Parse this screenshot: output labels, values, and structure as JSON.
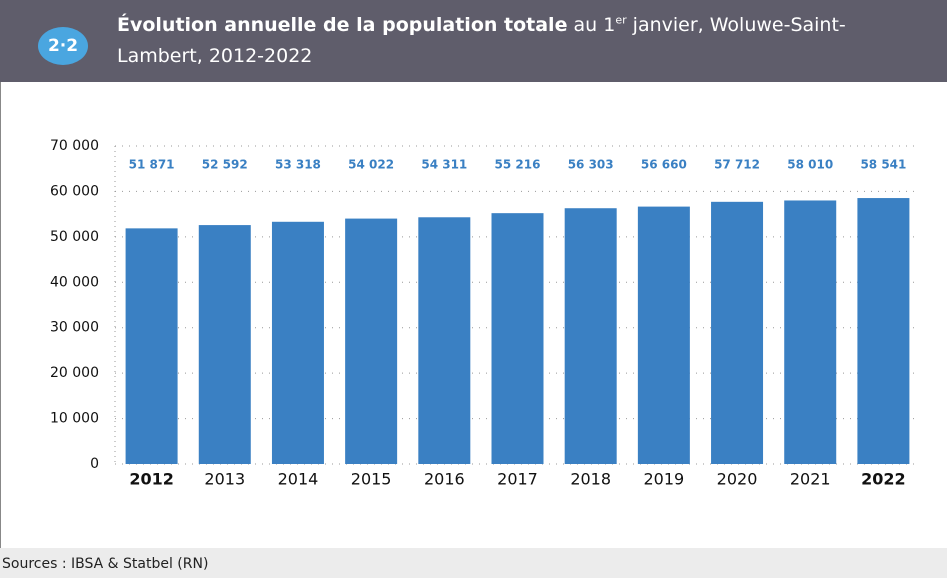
{
  "badge": "2·2",
  "chart_data": {
    "type": "bar",
    "title": "Évolution annuelle de la population totale",
    "subtitle_start": "au 1",
    "subtitle_sup": "er",
    "subtitle_end": "janvier, Woluwe-Saint-Lambert, 2012-2022",
    "categories": [
      "2012",
      "2013",
      "2014",
      "2015",
      "2016",
      "2017",
      "2018",
      "2019",
      "2020",
      "2021",
      "2022"
    ],
    "values": [
      51871,
      52592,
      53318,
      54022,
      54311,
      55216,
      56303,
      56660,
      57712,
      58010,
      58541
    ],
    "value_labels": [
      "51 871",
      "52 592",
      "53 318",
      "54 022",
      "54 311",
      "55 216",
      "56 303",
      "56 660",
      "57 712",
      "58 010",
      "58 541"
    ],
    "color": "#3a80c3",
    "ylim": [
      0,
      70000
    ],
    "yticks": [
      0,
      {
        "value": 10000,
        "label": "10 000"
      },
      {
        "value": 20000,
        "label": "20 000"
      },
      {
        "value": 30000,
        "label": "30 000"
      },
      {
        "value": 40000,
        "label": "40 000"
      },
      {
        "value": 50000,
        "label": "50 000"
      },
      {
        "value": 60000,
        "label": "60 000"
      },
      {
        "value": 70000,
        "label": "70 000"
      }
    ],
    "grid": true
  },
  "footer": {
    "source": "Sources : IBSA & Statbel (RN)"
  }
}
